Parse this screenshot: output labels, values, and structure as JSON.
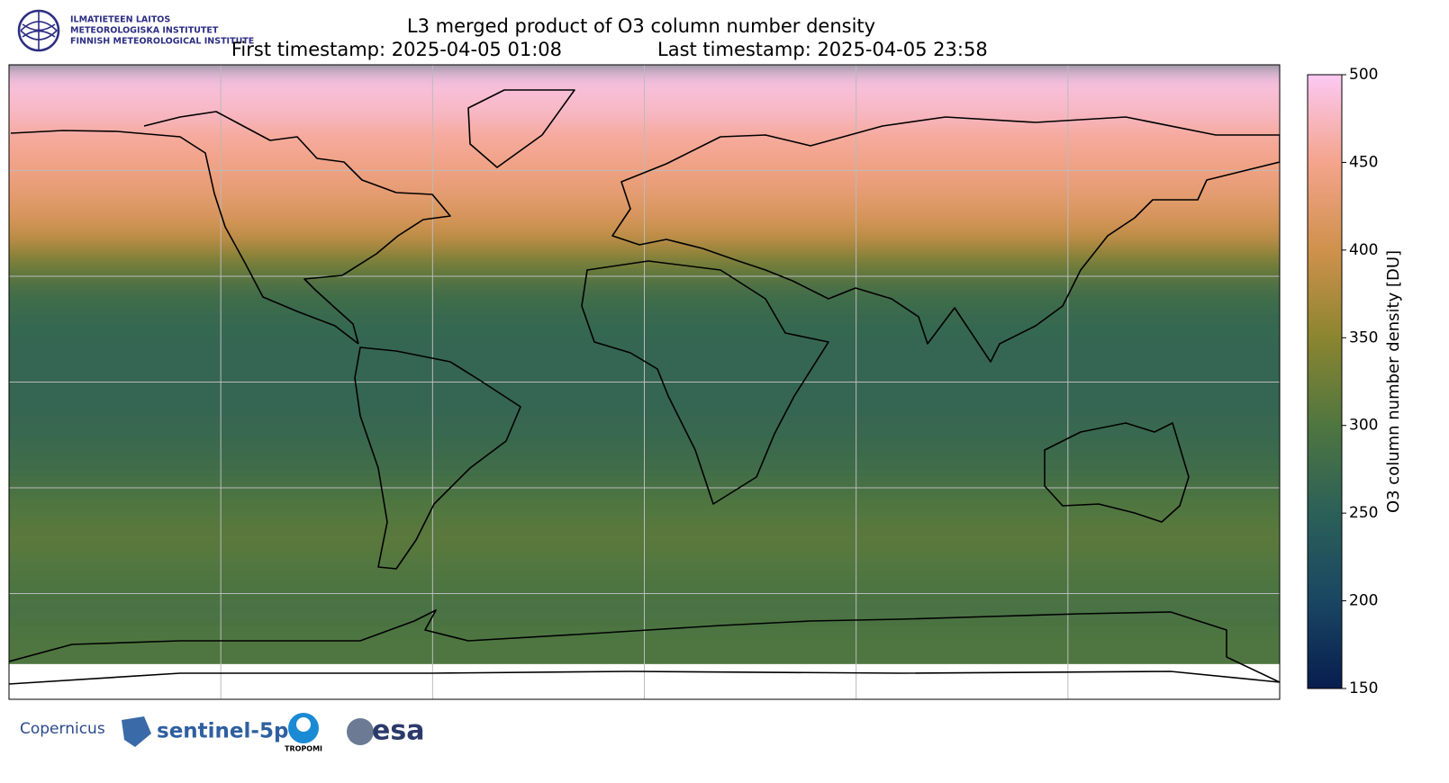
{
  "header": {
    "title": "L3 merged product of O3 column number density",
    "first_timestamp": "First timestamp: 2025-04-05 01:08",
    "last_timestamp": "Last timestamp: 2025-04-05 23:58"
  },
  "institute": [
    "ILMATIETEEN LAITOS",
    "METEOROLOGISKA INSTITUTET",
    "FINNISH METEOROLOGICAL INSTITUTE"
  ],
  "map": {
    "lonlim": [
      -180,
      180
    ],
    "latlim": [
      -90,
      90
    ],
    "grid_lons": [
      -120,
      -60,
      0,
      60,
      120
    ],
    "grid_lats": [
      -60,
      -30,
      0,
      30,
      60
    ],
    "zonal_profile": {
      "lats": [
        88,
        78,
        68,
        58,
        50,
        42,
        34,
        25,
        15,
        5,
        -5,
        -15,
        -25,
        -35,
        -45,
        -55,
        -65,
        -75
      ],
      "values": [
        495,
        480,
        455,
        440,
        420,
        395,
        330,
        280,
        265,
        262,
        262,
        268,
        280,
        300,
        310,
        300,
        290,
        300
      ]
    },
    "no_data_below_lat": -80
  },
  "colorbar": {
    "label": "O3 column number density [DU]",
    "lim": [
      150,
      500
    ],
    "ticks": [
      150,
      200,
      250,
      300,
      350,
      400,
      450,
      500
    ],
    "colors": [
      "#071d4f",
      "#1a4662",
      "#2b6058",
      "#4f7640",
      "#8b8530",
      "#cf914c",
      "#f4a48c",
      "#fbc9f3"
    ]
  },
  "logos": [
    "Copernicus",
    "sentinel-5p",
    "TROPOMI",
    "esa"
  ]
}
